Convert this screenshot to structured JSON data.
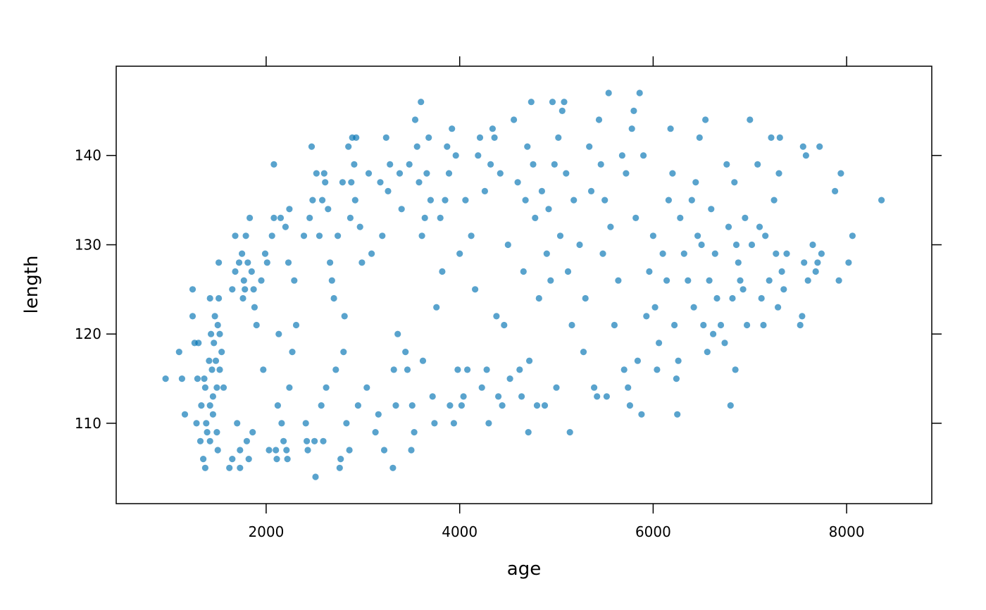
{
  "colors": {
    "point": "#0072B2",
    "axis": "#000000",
    "background": "#ffffff"
  },
  "chart_data": {
    "type": "scatter",
    "title": "",
    "xlabel": "age",
    "ylabel": "length",
    "xlim": [
      450,
      8880
    ],
    "ylim": [
      101,
      150
    ],
    "x_ticks": [
      2000,
      4000,
      6000,
      8000
    ],
    "x_tick_labels": [
      "2000",
      "4000",
      "6000",
      "8000"
    ],
    "y_ticks": [
      110,
      120,
      130,
      140
    ],
    "y_tick_labels": [
      "110",
      "120",
      "130",
      "140"
    ],
    "grid": false,
    "legend": "none",
    "point_color": "#0072B2",
    "point_alpha": 0.65,
    "axes_ticks_on_all_sides": true,
    "points": [
      [
        960,
        115
      ],
      [
        1100,
        118
      ],
      [
        1130,
        115
      ],
      [
        1160,
        111
      ],
      [
        1240,
        122
      ],
      [
        1240,
        125
      ],
      [
        1260,
        119
      ],
      [
        1280,
        110
      ],
      [
        1290,
        115
      ],
      [
        1300,
        119
      ],
      [
        1320,
        108
      ],
      [
        1330,
        112
      ],
      [
        1350,
        106
      ],
      [
        1360,
        115
      ],
      [
        1370,
        105
      ],
      [
        1370,
        114
      ],
      [
        1380,
        110
      ],
      [
        1390,
        109
      ],
      [
        1410,
        117
      ],
      [
        1420,
        124
      ],
      [
        1420,
        112
      ],
      [
        1420,
        108
      ],
      [
        1430,
        120
      ],
      [
        1440,
        116
      ],
      [
        1450,
        113
      ],
      [
        1450,
        111
      ],
      [
        1460,
        119
      ],
      [
        1470,
        122
      ],
      [
        1480,
        117
      ],
      [
        1490,
        114
      ],
      [
        1490,
        109
      ],
      [
        1500,
        121
      ],
      [
        1500,
        107
      ],
      [
        1510,
        124
      ],
      [
        1510,
        128
      ],
      [
        1520,
        116
      ],
      [
        1520,
        120
      ],
      [
        1540,
        118
      ],
      [
        1560,
        114
      ],
      [
        1620,
        105
      ],
      [
        1650,
        125
      ],
      [
        1650,
        106
      ],
      [
        1680,
        131
      ],
      [
        1680,
        127
      ],
      [
        1700,
        110
      ],
      [
        1720,
        128
      ],
      [
        1730,
        105
      ],
      [
        1730,
        107
      ],
      [
        1750,
        129
      ],
      [
        1760,
        124
      ],
      [
        1770,
        126
      ],
      [
        1780,
        125
      ],
      [
        1790,
        131
      ],
      [
        1800,
        108
      ],
      [
        1810,
        128
      ],
      [
        1820,
        106
      ],
      [
        1830,
        133
      ],
      [
        1850,
        127
      ],
      [
        1860,
        109
      ],
      [
        1870,
        125
      ],
      [
        1880,
        123
      ],
      [
        1900,
        121
      ],
      [
        1950,
        126
      ],
      [
        1970,
        116
      ],
      [
        1990,
        129
      ],
      [
        2010,
        128
      ],
      [
        2030,
        107
      ],
      [
        2060,
        131
      ],
      [
        2080,
        139
      ],
      [
        2080,
        133
      ],
      [
        2100,
        107
      ],
      [
        2110,
        106
      ],
      [
        2120,
        112
      ],
      [
        2130,
        120
      ],
      [
        2150,
        133
      ],
      [
        2160,
        110
      ],
      [
        2180,
        108
      ],
      [
        2200,
        132
      ],
      [
        2210,
        107
      ],
      [
        2220,
        106
      ],
      [
        2230,
        128
      ],
      [
        2240,
        134
      ],
      [
        2240,
        114
      ],
      [
        2270,
        118
      ],
      [
        2290,
        126
      ],
      [
        2310,
        121
      ],
      [
        2390,
        131
      ],
      [
        2410,
        110
      ],
      [
        2420,
        108
      ],
      [
        2430,
        107
      ],
      [
        2450,
        133
      ],
      [
        2470,
        141
      ],
      [
        2480,
        135
      ],
      [
        2500,
        108
      ],
      [
        2510,
        104
      ],
      [
        2520,
        138
      ],
      [
        2550,
        131
      ],
      [
        2570,
        112
      ],
      [
        2580,
        135
      ],
      [
        2590,
        108
      ],
      [
        2600,
        138
      ],
      [
        2610,
        137
      ],
      [
        2620,
        114
      ],
      [
        2640,
        134
      ],
      [
        2660,
        128
      ],
      [
        2680,
        126
      ],
      [
        2700,
        124
      ],
      [
        2720,
        116
      ],
      [
        2740,
        131
      ],
      [
        2760,
        105
      ],
      [
        2770,
        106
      ],
      [
        2790,
        137
      ],
      [
        2800,
        118
      ],
      [
        2810,
        122
      ],
      [
        2830,
        110
      ],
      [
        2850,
        141
      ],
      [
        2860,
        107
      ],
      [
        2870,
        133
      ],
      [
        2880,
        137
      ],
      [
        2890,
        142
      ],
      [
        2910,
        139
      ],
      [
        2920,
        135
      ],
      [
        2930,
        142
      ],
      [
        2950,
        112
      ],
      [
        2970,
        132
      ],
      [
        2990,
        128
      ],
      [
        3040,
        114
      ],
      [
        3060,
        138
      ],
      [
        3090,
        129
      ],
      [
        3130,
        109
      ],
      [
        3160,
        111
      ],
      [
        3180,
        137
      ],
      [
        3200,
        131
      ],
      [
        3220,
        107
      ],
      [
        3240,
        142
      ],
      [
        3260,
        136
      ],
      [
        3280,
        139
      ],
      [
        3310,
        105
      ],
      [
        3320,
        116
      ],
      [
        3340,
        112
      ],
      [
        3360,
        120
      ],
      [
        3380,
        138
      ],
      [
        3400,
        134
      ],
      [
        3440,
        118
      ],
      [
        3460,
        116
      ],
      [
        3480,
        139
      ],
      [
        3500,
        107
      ],
      [
        3510,
        112
      ],
      [
        3530,
        109
      ],
      [
        3540,
        144
      ],
      [
        3560,
        141
      ],
      [
        3580,
        137
      ],
      [
        3600,
        146
      ],
      [
        3610,
        131
      ],
      [
        3620,
        117
      ],
      [
        3640,
        133
      ],
      [
        3660,
        138
      ],
      [
        3680,
        142
      ],
      [
        3700,
        135
      ],
      [
        3720,
        113
      ],
      [
        3740,
        110
      ],
      [
        3760,
        123
      ],
      [
        3800,
        133
      ],
      [
        3820,
        127
      ],
      [
        3850,
        135
      ],
      [
        3870,
        141
      ],
      [
        3890,
        138
      ],
      [
        3900,
        112
      ],
      [
        3920,
        143
      ],
      [
        3940,
        110
      ],
      [
        3960,
        140
      ],
      [
        3980,
        116
      ],
      [
        4000,
        129
      ],
      [
        4020,
        112
      ],
      [
        4040,
        113
      ],
      [
        4060,
        135
      ],
      [
        4080,
        116
      ],
      [
        4120,
        131
      ],
      [
        4160,
        125
      ],
      [
        4190,
        140
      ],
      [
        4210,
        142
      ],
      [
        4230,
        114
      ],
      [
        4260,
        136
      ],
      [
        4280,
        116
      ],
      [
        4300,
        110
      ],
      [
        4320,
        139
      ],
      [
        4340,
        143
      ],
      [
        4360,
        142
      ],
      [
        4380,
        122
      ],
      [
        4400,
        113
      ],
      [
        4420,
        138
      ],
      [
        4440,
        112
      ],
      [
        4460,
        121
      ],
      [
        4500,
        130
      ],
      [
        4520,
        115
      ],
      [
        4560,
        144
      ],
      [
        4600,
        137
      ],
      [
        4620,
        116
      ],
      [
        4640,
        113
      ],
      [
        4660,
        127
      ],
      [
        4680,
        135
      ],
      [
        4700,
        141
      ],
      [
        4710,
        109
      ],
      [
        4720,
        117
      ],
      [
        4740,
        146
      ],
      [
        4760,
        139
      ],
      [
        4780,
        133
      ],
      [
        4800,
        112
      ],
      [
        4820,
        124
      ],
      [
        4850,
        136
      ],
      [
        4880,
        112
      ],
      [
        4900,
        129
      ],
      [
        4920,
        134
      ],
      [
        4940,
        126
      ],
      [
        4960,
        146
      ],
      [
        4980,
        139
      ],
      [
        5000,
        114
      ],
      [
        5020,
        142
      ],
      [
        5040,
        131
      ],
      [
        5060,
        145
      ],
      [
        5080,
        146
      ],
      [
        5100,
        138
      ],
      [
        5120,
        127
      ],
      [
        5140,
        109
      ],
      [
        5160,
        121
      ],
      [
        5180,
        135
      ],
      [
        5240,
        130
      ],
      [
        5280,
        118
      ],
      [
        5300,
        124
      ],
      [
        5340,
        141
      ],
      [
        5360,
        136
      ],
      [
        5390,
        114
      ],
      [
        5420,
        113
      ],
      [
        5440,
        144
      ],
      [
        5460,
        139
      ],
      [
        5480,
        129
      ],
      [
        5500,
        135
      ],
      [
        5520,
        113
      ],
      [
        5540,
        147
      ],
      [
        5560,
        132
      ],
      [
        5600,
        121
      ],
      [
        5640,
        126
      ],
      [
        5680,
        140
      ],
      [
        5700,
        116
      ],
      [
        5720,
        138
      ],
      [
        5740,
        114
      ],
      [
        5760,
        112
      ],
      [
        5780,
        143
      ],
      [
        5800,
        145
      ],
      [
        5820,
        133
      ],
      [
        5840,
        117
      ],
      [
        5860,
        147
      ],
      [
        5880,
        111
      ],
      [
        5900,
        140
      ],
      [
        5930,
        122
      ],
      [
        5960,
        127
      ],
      [
        6000,
        131
      ],
      [
        6020,
        123
      ],
      [
        6040,
        116
      ],
      [
        6060,
        119
      ],
      [
        6100,
        129
      ],
      [
        6140,
        126
      ],
      [
        6160,
        135
      ],
      [
        6180,
        143
      ],
      [
        6200,
        138
      ],
      [
        6220,
        121
      ],
      [
        6240,
        115
      ],
      [
        6250,
        111
      ],
      [
        6260,
        117
      ],
      [
        6280,
        133
      ],
      [
        6320,
        129
      ],
      [
        6360,
        126
      ],
      [
        6400,
        135
      ],
      [
        6420,
        123
      ],
      [
        6440,
        137
      ],
      [
        6460,
        131
      ],
      [
        6480,
        142
      ],
      [
        6500,
        130
      ],
      [
        6520,
        121
      ],
      [
        6540,
        144
      ],
      [
        6560,
        118
      ],
      [
        6580,
        126
      ],
      [
        6600,
        134
      ],
      [
        6620,
        120
      ],
      [
        6640,
        129
      ],
      [
        6660,
        124
      ],
      [
        6700,
        121
      ],
      [
        6740,
        119
      ],
      [
        6760,
        139
      ],
      [
        6780,
        132
      ],
      [
        6800,
        112
      ],
      [
        6820,
        124
      ],
      [
        6840,
        137
      ],
      [
        6850,
        116
      ],
      [
        6860,
        130
      ],
      [
        6880,
        128
      ],
      [
        6900,
        126
      ],
      [
        6930,
        125
      ],
      [
        6950,
        133
      ],
      [
        6970,
        121
      ],
      [
        7000,
        144
      ],
      [
        7020,
        130
      ],
      [
        7080,
        139
      ],
      [
        7100,
        132
      ],
      [
        7120,
        124
      ],
      [
        7140,
        121
      ],
      [
        7160,
        131
      ],
      [
        7200,
        126
      ],
      [
        7220,
        142
      ],
      [
        7250,
        135
      ],
      [
        7270,
        129
      ],
      [
        7290,
        123
      ],
      [
        7300,
        138
      ],
      [
        7310,
        142
      ],
      [
        7330,
        127
      ],
      [
        7350,
        125
      ],
      [
        7380,
        129
      ],
      [
        7520,
        121
      ],
      [
        7540,
        122
      ],
      [
        7550,
        141
      ],
      [
        7560,
        128
      ],
      [
        7580,
        140
      ],
      [
        7600,
        126
      ],
      [
        7650,
        130
      ],
      [
        7680,
        127
      ],
      [
        7700,
        128
      ],
      [
        7720,
        141
      ],
      [
        7740,
        129
      ],
      [
        7880,
        136
      ],
      [
        7920,
        126
      ],
      [
        7940,
        138
      ],
      [
        8020,
        128
      ],
      [
        8060,
        131
      ],
      [
        8360,
        135
      ]
    ]
  }
}
